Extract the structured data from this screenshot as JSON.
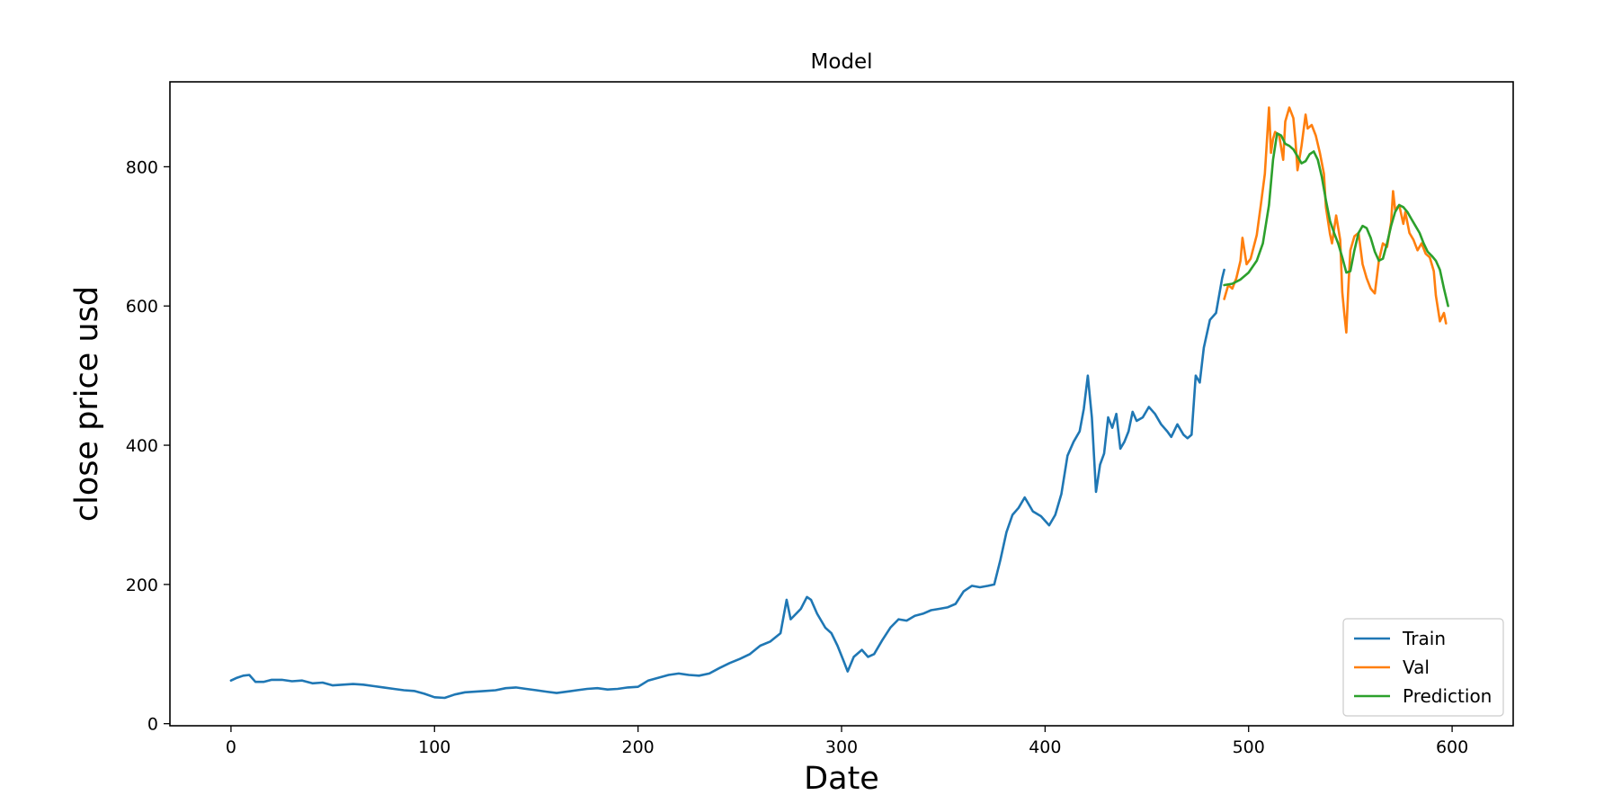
{
  "chart_data": {
    "type": "line",
    "title": "Model",
    "xlabel": "Date",
    "ylabel": "close price usd",
    "xlim": [
      -30,
      630
    ],
    "ylim": [
      -3,
      922
    ],
    "xticks": [
      0,
      100,
      200,
      300,
      400,
      500,
      600
    ],
    "yticks": [
      0,
      200,
      400,
      600,
      800
    ],
    "grid": false,
    "legend_position": "lower-right",
    "series": [
      {
        "name": "Train",
        "color": "#1f77b4",
        "points": [
          [
            0,
            62
          ],
          [
            3,
            66
          ],
          [
            6,
            69
          ],
          [
            9,
            70
          ],
          [
            12,
            60
          ],
          [
            16,
            60
          ],
          [
            20,
            63
          ],
          [
            25,
            63
          ],
          [
            30,
            61
          ],
          [
            35,
            62
          ],
          [
            40,
            58
          ],
          [
            45,
            59
          ],
          [
            50,
            55
          ],
          [
            55,
            56
          ],
          [
            60,
            57
          ],
          [
            65,
            56
          ],
          [
            70,
            54
          ],
          [
            75,
            52
          ],
          [
            80,
            50
          ],
          [
            85,
            48
          ],
          [
            90,
            47
          ],
          [
            95,
            43
          ],
          [
            100,
            38
          ],
          [
            105,
            37
          ],
          [
            110,
            42
          ],
          [
            115,
            45
          ],
          [
            120,
            46
          ],
          [
            125,
            47
          ],
          [
            130,
            48
          ],
          [
            135,
            51
          ],
          [
            140,
            52
          ],
          [
            145,
            50
          ],
          [
            150,
            48
          ],
          [
            155,
            46
          ],
          [
            160,
            44
          ],
          [
            165,
            46
          ],
          [
            170,
            48
          ],
          [
            175,
            50
          ],
          [
            180,
            51
          ],
          [
            185,
            49
          ],
          [
            190,
            50
          ],
          [
            195,
            52
          ],
          [
            200,
            53
          ],
          [
            205,
            62
          ],
          [
            210,
            66
          ],
          [
            215,
            70
          ],
          [
            220,
            72
          ],
          [
            225,
            70
          ],
          [
            230,
            69
          ],
          [
            235,
            72
          ],
          [
            240,
            80
          ],
          [
            245,
            87
          ],
          [
            250,
            93
          ],
          [
            255,
            100
          ],
          [
            260,
            112
          ],
          [
            265,
            118
          ],
          [
            270,
            130
          ],
          [
            273,
            178
          ],
          [
            275,
            150
          ],
          [
            280,
            165
          ],
          [
            283,
            182
          ],
          [
            285,
            178
          ],
          [
            288,
            158
          ],
          [
            292,
            138
          ],
          [
            295,
            130
          ],
          [
            298,
            112
          ],
          [
            301,
            90
          ],
          [
            303,
            75
          ],
          [
            306,
            96
          ],
          [
            310,
            106
          ],
          [
            313,
            96
          ],
          [
            316,
            100
          ],
          [
            320,
            120
          ],
          [
            324,
            138
          ],
          [
            328,
            150
          ],
          [
            332,
            148
          ],
          [
            336,
            155
          ],
          [
            340,
            158
          ],
          [
            344,
            163
          ],
          [
            348,
            165
          ],
          [
            352,
            167
          ],
          [
            356,
            172
          ],
          [
            360,
            190
          ],
          [
            364,
            198
          ],
          [
            368,
            196
          ],
          [
            372,
            198
          ],
          [
            375,
            200
          ],
          [
            378,
            235
          ],
          [
            381,
            275
          ],
          [
            384,
            300
          ],
          [
            387,
            310
          ],
          [
            390,
            325
          ],
          [
            394,
            305
          ],
          [
            398,
            298
          ],
          [
            402,
            285
          ],
          [
            405,
            300
          ],
          [
            408,
            330
          ],
          [
            411,
            385
          ],
          [
            414,
            405
          ],
          [
            417,
            420
          ],
          [
            419,
            452
          ],
          [
            421,
            500
          ],
          [
            423,
            440
          ],
          [
            425,
            333
          ],
          [
            427,
            372
          ],
          [
            429,
            388
          ],
          [
            431,
            440
          ],
          [
            433,
            425
          ],
          [
            435,
            445
          ],
          [
            437,
            395
          ],
          [
            439,
            405
          ],
          [
            441,
            420
          ],
          [
            443,
            448
          ],
          [
            445,
            435
          ],
          [
            448,
            440
          ],
          [
            451,
            455
          ],
          [
            454,
            445
          ],
          [
            457,
            430
          ],
          [
            460,
            420
          ],
          [
            462,
            412
          ],
          [
            465,
            430
          ],
          [
            468,
            415
          ],
          [
            470,
            410
          ],
          [
            472,
            415
          ],
          [
            474,
            500
          ],
          [
            476,
            490
          ],
          [
            478,
            540
          ],
          [
            481,
            580
          ],
          [
            484,
            590
          ],
          [
            487,
            640
          ],
          [
            488,
            652
          ]
        ]
      },
      {
        "name": "Val",
        "color": "#ff7f0e",
        "points": [
          [
            488,
            610
          ],
          [
            490,
            630
          ],
          [
            492,
            625
          ],
          [
            494,
            640
          ],
          [
            496,
            665
          ],
          [
            497,
            698
          ],
          [
            499,
            660
          ],
          [
            501,
            668
          ],
          [
            504,
            702
          ],
          [
            506,
            745
          ],
          [
            508,
            790
          ],
          [
            510,
            885
          ],
          [
            511,
            820
          ],
          [
            512,
            840
          ],
          [
            513,
            850
          ],
          [
            515,
            845
          ],
          [
            517,
            810
          ],
          [
            518,
            865
          ],
          [
            520,
            885
          ],
          [
            522,
            870
          ],
          [
            523,
            838
          ],
          [
            524,
            795
          ],
          [
            526,
            830
          ],
          [
            528,
            875
          ],
          [
            529,
            855
          ],
          [
            531,
            860
          ],
          [
            533,
            845
          ],
          [
            535,
            820
          ],
          [
            537,
            790
          ],
          [
            538,
            742
          ],
          [
            540,
            703
          ],
          [
            541,
            690
          ],
          [
            543,
            730
          ],
          [
            545,
            695
          ],
          [
            546,
            620
          ],
          [
            547,
            590
          ],
          [
            548,
            562
          ],
          [
            549,
            625
          ],
          [
            550,
            680
          ],
          [
            552,
            700
          ],
          [
            554,
            705
          ],
          [
            556,
            660
          ],
          [
            558,
            640
          ],
          [
            560,
            625
          ],
          [
            562,
            618
          ],
          [
            564,
            665
          ],
          [
            566,
            690
          ],
          [
            568,
            685
          ],
          [
            570,
            720
          ],
          [
            571,
            765
          ],
          [
            572,
            738
          ],
          [
            574,
            745
          ],
          [
            576,
            718
          ],
          [
            577,
            735
          ],
          [
            579,
            705
          ],
          [
            581,
            695
          ],
          [
            583,
            680
          ],
          [
            585,
            690
          ],
          [
            587,
            675
          ],
          [
            589,
            670
          ],
          [
            591,
            650
          ],
          [
            592,
            615
          ],
          [
            594,
            578
          ],
          [
            596,
            590
          ],
          [
            597,
            575
          ]
        ]
      },
      {
        "name": "Prediction",
        "color": "#2ca02c",
        "points": [
          [
            488,
            630
          ],
          [
            492,
            632
          ],
          [
            496,
            638
          ],
          [
            500,
            648
          ],
          [
            504,
            665
          ],
          [
            507,
            690
          ],
          [
            510,
            745
          ],
          [
            512,
            810
          ],
          [
            514,
            848
          ],
          [
            516,
            845
          ],
          [
            518,
            833
          ],
          [
            520,
            830
          ],
          [
            522,
            825
          ],
          [
            524,
            815
          ],
          [
            526,
            805
          ],
          [
            528,
            808
          ],
          [
            530,
            818
          ],
          [
            532,
            822
          ],
          [
            534,
            810
          ],
          [
            536,
            785
          ],
          [
            538,
            752
          ],
          [
            540,
            722
          ],
          [
            542,
            705
          ],
          [
            544,
            690
          ],
          [
            546,
            670
          ],
          [
            548,
            648
          ],
          [
            550,
            650
          ],
          [
            552,
            680
          ],
          [
            554,
            705
          ],
          [
            556,
            715
          ],
          [
            558,
            712
          ],
          [
            560,
            698
          ],
          [
            562,
            678
          ],
          [
            564,
            665
          ],
          [
            566,
            668
          ],
          [
            568,
            690
          ],
          [
            570,
            715
          ],
          [
            572,
            735
          ],
          [
            574,
            745
          ],
          [
            576,
            742
          ],
          [
            578,
            735
          ],
          [
            580,
            725
          ],
          [
            582,
            715
          ],
          [
            584,
            705
          ],
          [
            586,
            690
          ],
          [
            588,
            678
          ],
          [
            590,
            672
          ],
          [
            592,
            665
          ],
          [
            594,
            652
          ],
          [
            596,
            625
          ],
          [
            598,
            600
          ]
        ]
      }
    ]
  }
}
